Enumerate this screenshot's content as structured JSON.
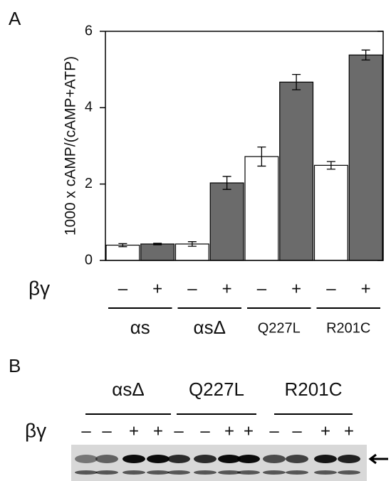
{
  "panel_labels": [
    "A",
    "B"
  ],
  "chart_data": {
    "type": "bar",
    "ylabel": "1000 x cAMP/(cAMP+ATP)",
    "row_label": "βγ",
    "categories": [
      "–",
      "+",
      "–",
      "+",
      "–",
      "+",
      "–",
      "+"
    ],
    "groups": [
      "αs",
      "αsΔ",
      "Q227L",
      "R201C"
    ],
    "values": [
      0.4,
      0.43,
      0.43,
      2.03,
      2.72,
      4.67,
      2.49,
      5.38
    ],
    "errors": [
      0.04,
      0.02,
      0.06,
      0.17,
      0.25,
      0.2,
      0.1,
      0.13
    ],
    "colors": [
      "#ffffff",
      "#6b6b6b",
      "#ffffff",
      "#6b6b6b",
      "#ffffff",
      "#6b6b6b",
      "#ffffff",
      "#6b6b6b"
    ],
    "ylim": [
      0,
      6
    ],
    "yticks": [
      0,
      2,
      4,
      6
    ]
  },
  "blot": {
    "groups": [
      "αsΔ",
      "Q227L",
      "R201C"
    ],
    "row_label": "βγ",
    "lanes": [
      "–",
      "–",
      "+",
      "+",
      "–",
      "–",
      "+",
      "+",
      "–",
      "–",
      "+",
      "+"
    ]
  }
}
